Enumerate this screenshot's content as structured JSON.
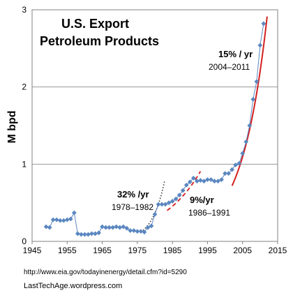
{
  "chart_data": {
    "type": "scatter",
    "title": [
      "U.S. Export",
      "Petroleum Products"
    ],
    "ylabel": "M bpd",
    "xlabel": "",
    "xlim": [
      1945,
      2015
    ],
    "ylim": [
      0,
      3
    ],
    "xticks": [
      1945,
      1955,
      1965,
      1975,
      1985,
      1995,
      2005,
      2015
    ],
    "yticks": [
      0,
      1,
      2,
      3
    ],
    "grid": "horizontal",
    "marker_color": "#5b87c0",
    "series": [
      {
        "x": [
          1949,
          1950,
          1951,
          1952,
          1953,
          1954,
          1955,
          1956,
          1957,
          1958,
          1959,
          1960,
          1961,
          1962,
          1963,
          1964,
          1965,
          1966,
          1967,
          1968,
          1969,
          1970,
          1971,
          1972,
          1973,
          1974,
          1975,
          1976,
          1977,
          1978,
          1979,
          1980,
          1981,
          1982,
          1983,
          1984,
          1985,
          1986,
          1987,
          1988,
          1989,
          1990,
          1991,
          1992,
          1993,
          1994,
          1995,
          1996,
          1997,
          1998,
          1999,
          2000,
          2001,
          2002,
          2003,
          2004,
          2005,
          2006,
          2007,
          2008,
          2009,
          2010,
          2011
        ],
        "y": [
          0.19,
          0.18,
          0.28,
          0.28,
          0.27,
          0.27,
          0.28,
          0.29,
          0.37,
          0.1,
          0.09,
          0.09,
          0.09,
          0.1,
          0.1,
          0.11,
          0.19,
          0.18,
          0.18,
          0.18,
          0.19,
          0.18,
          0.19,
          0.17,
          0.14,
          0.14,
          0.13,
          0.13,
          0.12,
          0.18,
          0.2,
          0.35,
          0.48,
          0.48,
          0.48,
          0.5,
          0.52,
          0.55,
          0.6,
          0.66,
          0.73,
          0.77,
          0.82,
          0.78,
          0.79,
          0.78,
          0.8,
          0.8,
          0.78,
          0.78,
          0.8,
          0.88,
          0.88,
          0.93,
          0.99,
          1.01,
          1.14,
          1.29,
          1.5,
          1.84,
          2.07,
          2.54,
          2.82
        ]
      }
    ],
    "trendlines": [
      {
        "label": "32% /yr",
        "period": "1978–1982",
        "style": "dotted",
        "color": "#333333",
        "x": [
          1976,
          1982.8
        ],
        "y0": 0.12,
        "rate": 0.32
      },
      {
        "label": "9%/yr",
        "period": "1986–1991",
        "style": "dashed",
        "color": "#d42020",
        "x": [
          1983.5,
          1993
        ],
        "y0": 0.4,
        "rate": 0.09
      },
      {
        "label": "15% / yr",
        "period": "2004–2011",
        "style": "solid",
        "color": "#d42020",
        "x": [
          2002,
          2012
        ],
        "y0": 0.72,
        "rate": 0.15
      }
    ]
  },
  "source_url": "http://www.eia.gov/todayinenergy/detail.cfm?id=5290",
  "blog": "LastTechAge.wordpress.com"
}
